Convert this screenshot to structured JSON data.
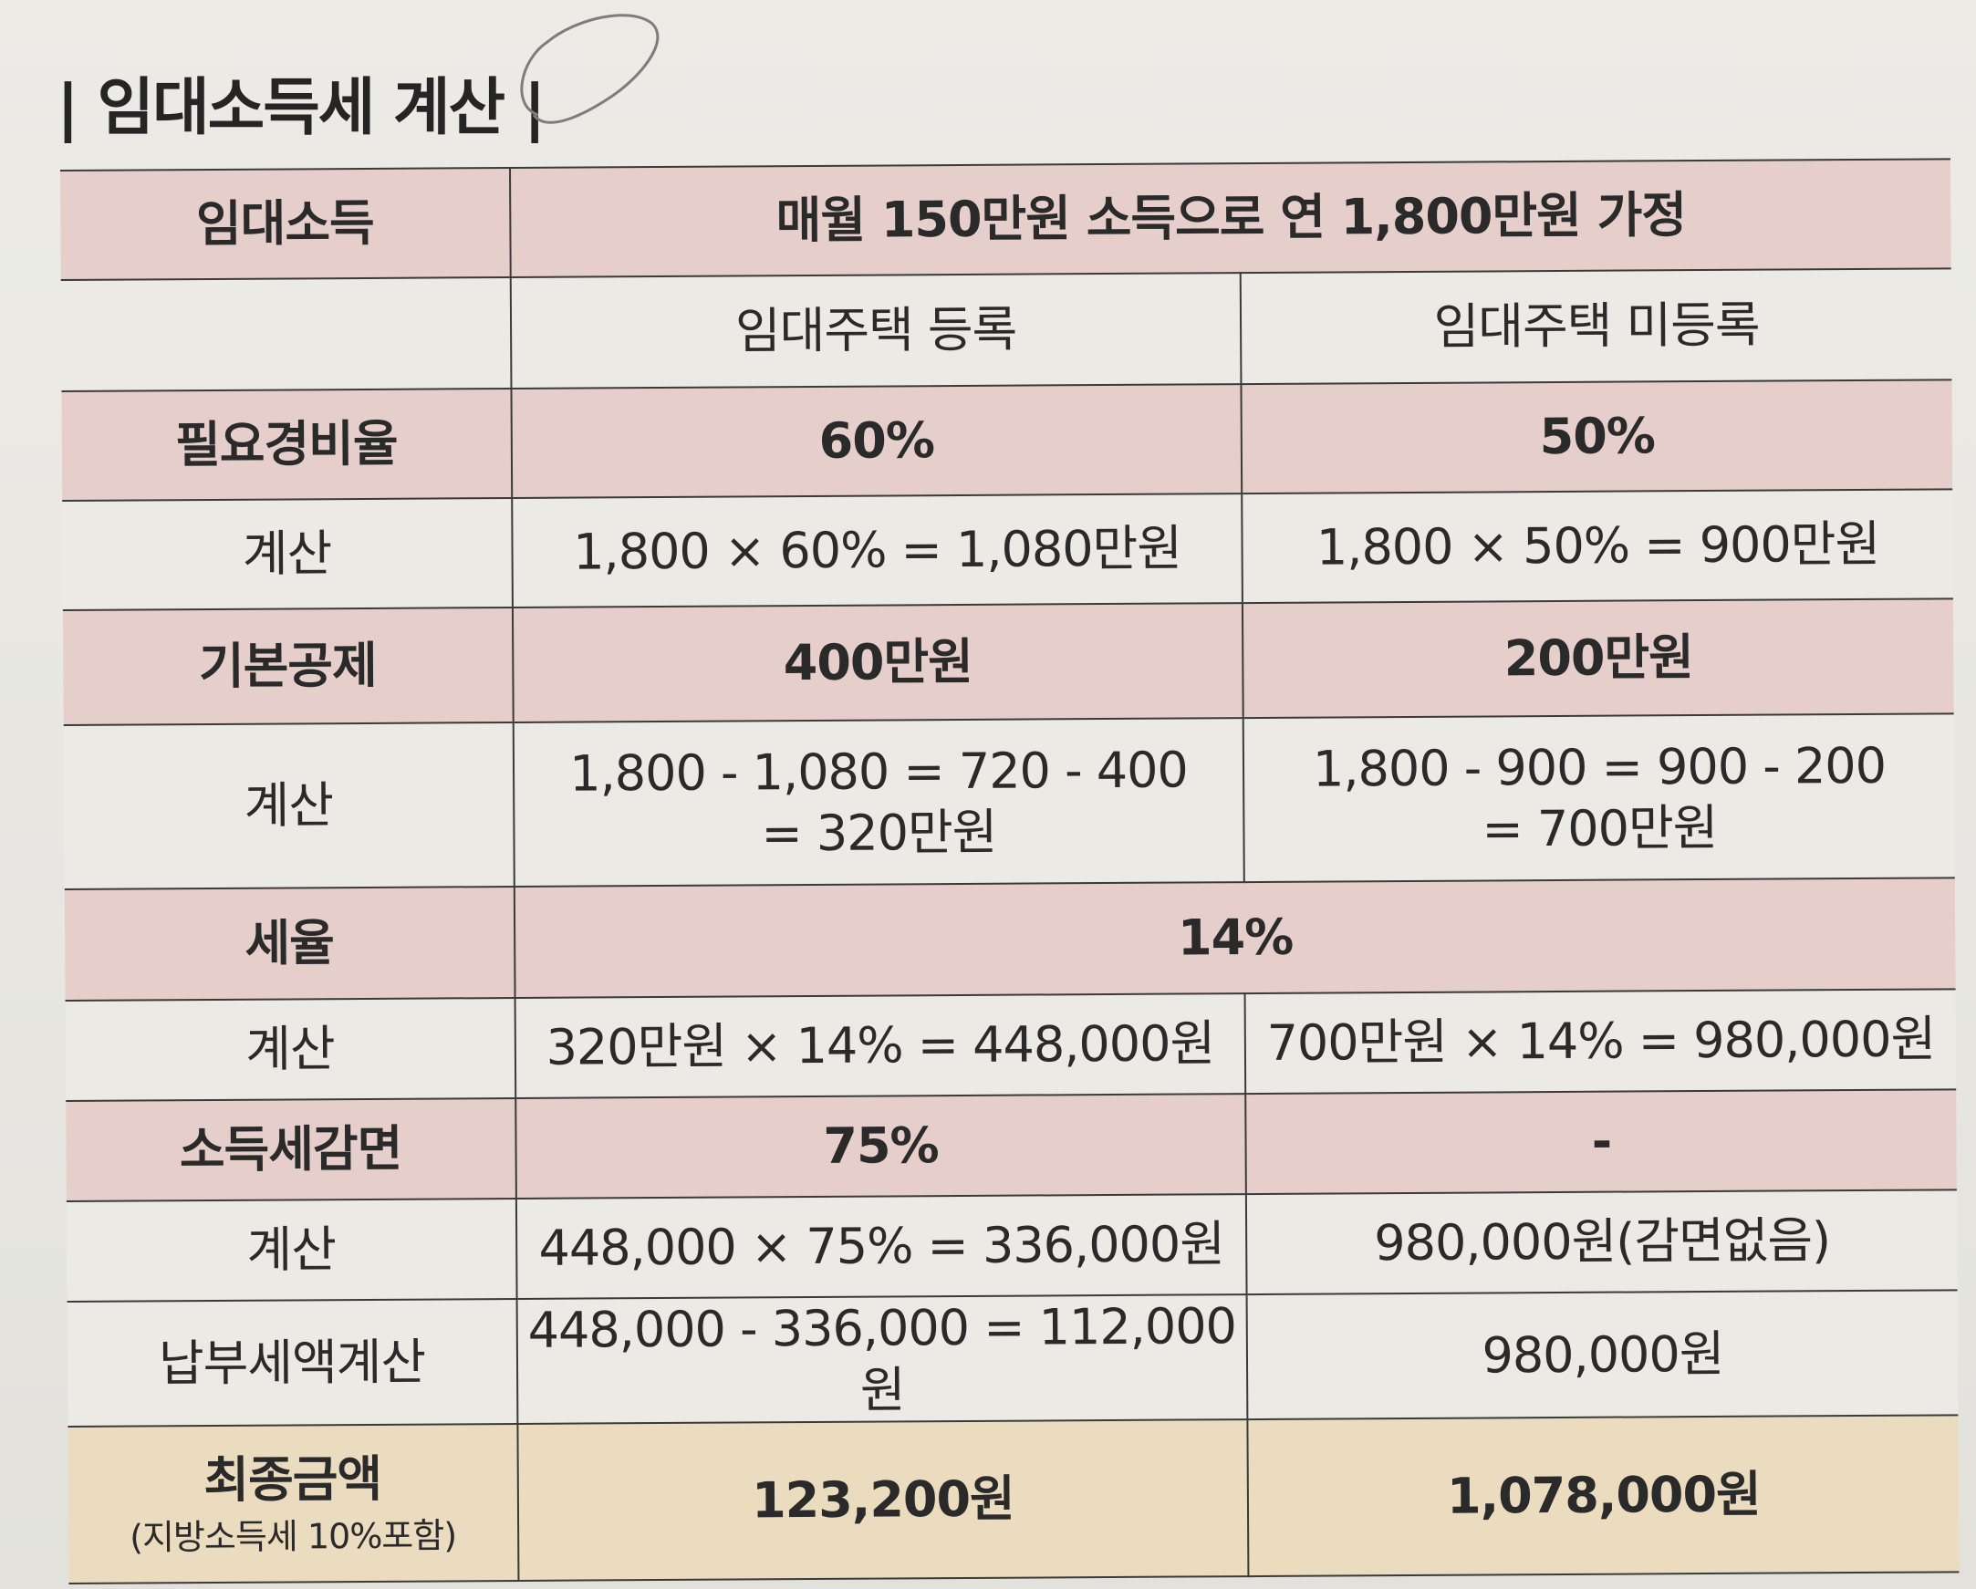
{
  "title": "| 임대소득세 계산 |",
  "table": {
    "income": {
      "label": "임대소득",
      "value": "매월 150만원 소득으로 연 1,800만원 가정"
    },
    "columns": {
      "registered": "임대주택 등록",
      "unregistered": "임대주택 미등록"
    },
    "expense_ratio": {
      "label": "필요경비율",
      "registered": "60%",
      "unregistered": "50%"
    },
    "expense_calc": {
      "label": "계산",
      "registered": "1,800 × 60% = 1,080만원",
      "unregistered": "1,800 × 50% = 900만원"
    },
    "basic_deduction": {
      "label": "기본공제",
      "registered": "400만원",
      "unregistered": "200만원"
    },
    "deduction_calc": {
      "label": "계산",
      "registered_line1": "1,800 - 1,080 = 720 - 400",
      "registered_line2": "= 320만원",
      "unregistered_line1": "1,800 - 900 = 900 - 200",
      "unregistered_line2": "= 700만원"
    },
    "tax_rate": {
      "label": "세율",
      "value": "14%"
    },
    "tax_calc": {
      "label": "계산",
      "registered": "320만원 × 14% = 448,000원",
      "unregistered": "700만원 × 14% = 980,000원"
    },
    "reduction": {
      "label": "소득세감면",
      "registered": "75%",
      "unregistered": "-"
    },
    "reduction_calc": {
      "label": "계산",
      "registered": "448,000 × 75% = 336,000원",
      "unregistered": "980,000원(감면없음)"
    },
    "payable_calc": {
      "label": "납부세액계산",
      "registered": "448,000 - 336,000 = 112,000원",
      "unregistered": "980,000원"
    },
    "final": {
      "label": "최종금액",
      "note": "(지방소득세 10%포함)",
      "registered": "123,200원",
      "unregistered": "1,078,000원"
    }
  }
}
